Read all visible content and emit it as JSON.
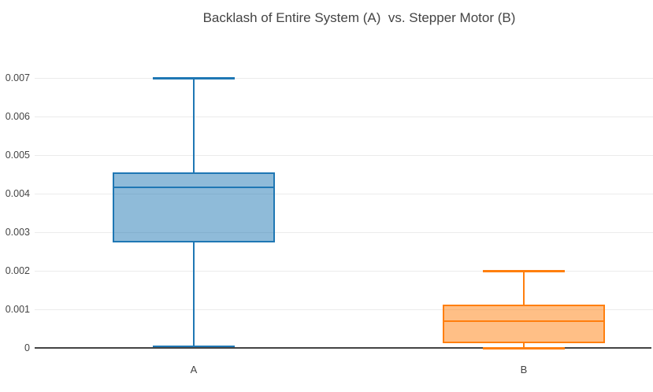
{
  "title": "Backlash of Entire System (A)  vs. Stepper Motor (B)",
  "chart_data": {
    "type": "box",
    "title": "Backlash of Entire System (A)  vs. Stepper Motor (B)",
    "xlabel": "",
    "ylabel": "",
    "categories": [
      "A",
      "B"
    ],
    "series": [
      {
        "name": "A",
        "label": "Backlash of Entire System",
        "min": 5e-05,
        "q1": 0.00273,
        "median": 0.00417,
        "q3": 0.00455,
        "max": 0.007,
        "line_color": "#1f77b4",
        "fill_color": "rgba(31,119,180,0.5)"
      },
      {
        "name": "B",
        "label": "Stepper Motor",
        "min": 0.0,
        "q1": 0.00013,
        "median": 0.0007,
        "q3": 0.00112,
        "max": 0.002,
        "line_color": "#ff7f0e",
        "fill_color": "rgba(255,127,14,0.5)"
      }
    ],
    "yticks": [
      {
        "value": 0.007,
        "label": "0.007"
      },
      {
        "value": 0.006,
        "label": "0.006"
      },
      {
        "value": 0.005,
        "label": "0.005"
      },
      {
        "value": 0.004,
        "label": "0.004"
      },
      {
        "value": 0.003,
        "label": "0.003"
      },
      {
        "value": 0.002,
        "label": "0.002"
      },
      {
        "value": 0.001,
        "label": "0.001"
      },
      {
        "value": 0,
        "label": "0"
      }
    ],
    "ylim": [
      0,
      0.007
    ],
    "grid": true,
    "legend": "none",
    "background": "#ffffff",
    "grid_color": "#ebebeb",
    "axis_color": "#444444",
    "text_color": "#444444"
  }
}
